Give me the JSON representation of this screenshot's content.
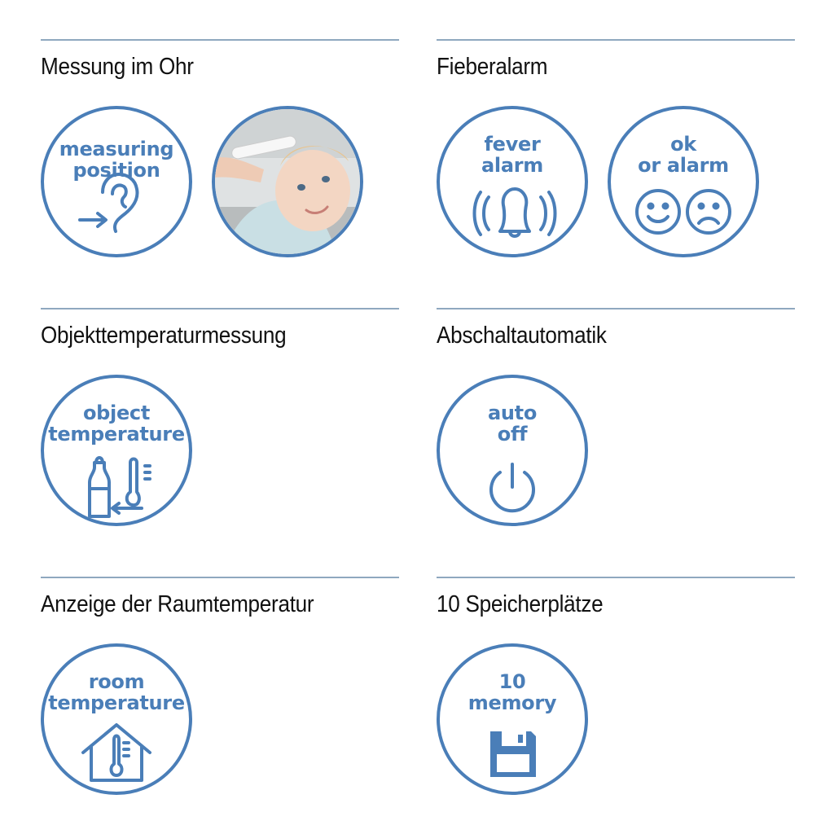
{
  "sections": [
    {
      "title": "Messung im Ohr",
      "badge_lines": [
        "measuring",
        "position"
      ],
      "icon": "ear-icon"
    },
    {
      "title": "Fieberalarm",
      "badge_lines": [
        "fever",
        "alarm"
      ],
      "icon": "bell-alarm-icon",
      "second_badge_lines": [
        "ok",
        "or alarm"
      ],
      "second_icon": "smiley-frowny-icon"
    },
    {
      "title": "Objekttemperaturmessung",
      "badge_lines": [
        "object",
        "temperature"
      ],
      "icon": "bottle-thermometer-icon"
    },
    {
      "title": "Abschaltautomatik",
      "badge_lines": [
        "auto",
        "off"
      ],
      "icon": "power-icon"
    },
    {
      "title": "Anzeige der Raumtemperatur",
      "badge_lines": [
        "room",
        "temperature"
      ],
      "icon": "house-thermometer-icon"
    },
    {
      "title": "10 Speicherplätze",
      "badge_lines": [
        "10",
        "memory"
      ],
      "icon": "floppy-disk-icon"
    }
  ],
  "colors": {
    "accent": "#4a7eb8",
    "rule": "#8fa8bf",
    "text": "#111111"
  }
}
